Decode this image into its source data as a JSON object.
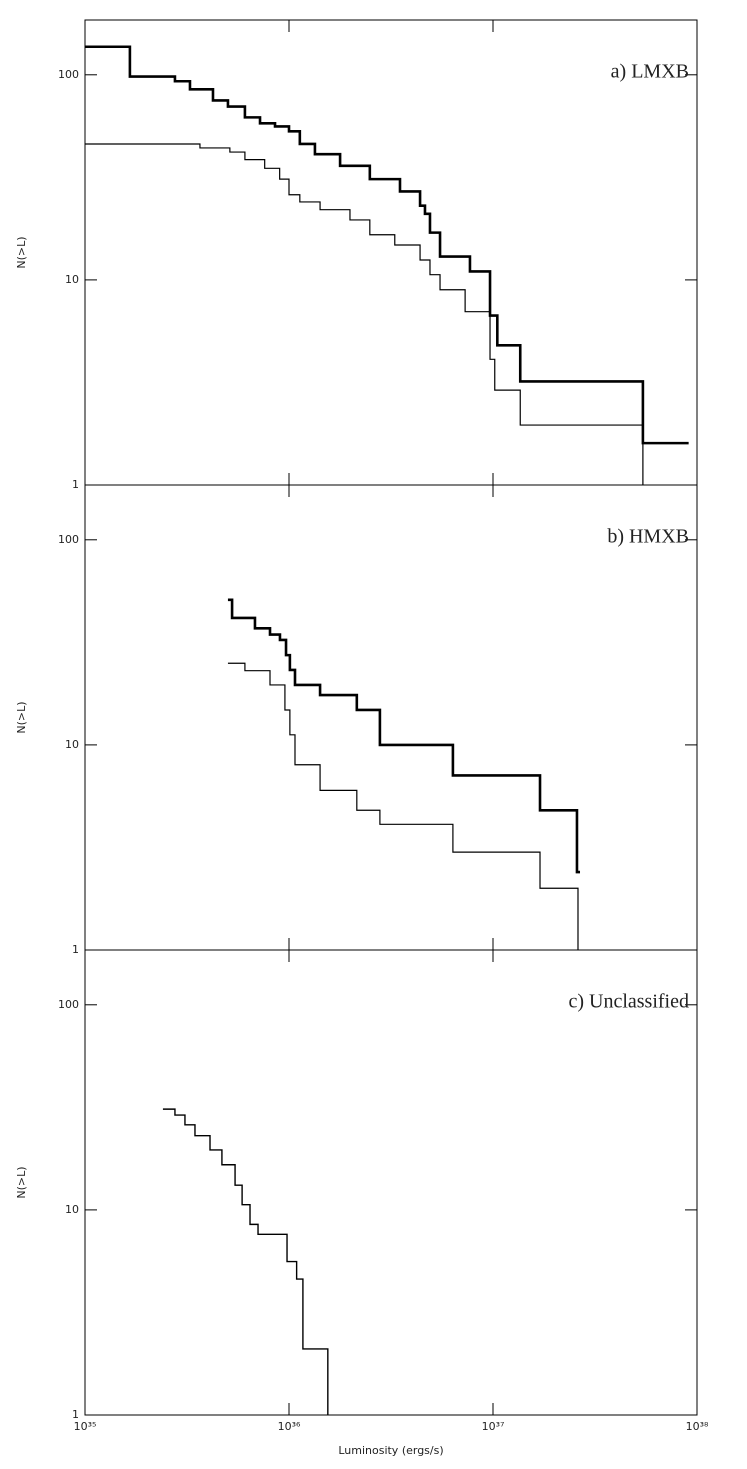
{
  "chart_data": [
    {
      "type": "step",
      "annotation": "a) LMXB",
      "ylabel": "N(>L)",
      "xlog": true,
      "ylog": true,
      "xlim": [
        1e+35,
        1e+38
      ],
      "ylim": [
        1,
        185
      ],
      "xticks": [
        1e+35,
        1e+36,
        1e+37,
        1e+38
      ],
      "yticks": [
        1,
        10,
        100
      ],
      "series": [
        {
          "color": "#000000",
          "linewidth": 2.6,
          "x": [
            1e+35,
            1.66e+35,
            2.76e+35,
            3.27e+35,
            4.24e+35,
            5.02e+35,
            6.08e+35,
            7.21e+35,
            8.54e+35,
            1e+36,
            1.13e+36,
            1.34e+36,
            1.78e+36,
            2.49e+36,
            3.5e+36,
            4.39e+36,
            4.64e+36,
            4.91e+36,
            5.5e+36,
            7.71e+36,
            9.67e+36,
            1.05e+37,
            1.36e+37,
            5.43e+37,
            9.1e+37
          ],
          "values": [
            137,
            98,
            93,
            85,
            75,
            70,
            62,
            58,
            56,
            53,
            46,
            41,
            36,
            31,
            27,
            23,
            21,
            17,
            13,
            11,
            6.7,
            4.8,
            3.2,
            1.6,
            1.6
          ]
        },
        {
          "color": "#000000",
          "linewidth": 1.2,
          "x": [
            1e+35,
            3.66e+35,
            5.13e+35,
            6.08e+35,
            7.6e+35,
            9e+35,
            1e+36,
            1.13e+36,
            1.42e+36,
            1.99e+36,
            2.49e+36,
            3.3e+36,
            4.39e+36,
            4.91e+36,
            5.5e+36,
            7.3e+36,
            9.67e+36,
            1.02e+37,
            1.36e+37,
            5.43e+37
          ],
          "values": [
            46,
            44,
            42,
            38.6,
            35,
            31,
            26,
            24,
            22,
            19.6,
            16.6,
            14.8,
            12.5,
            10.6,
            8.95,
            7,
            4.1,
            2.9,
            1.96,
            1
          ]
        }
      ]
    },
    {
      "type": "step",
      "annotation": "b) HMXB",
      "ylabel": "N(>L)",
      "xlog": true,
      "ylog": true,
      "xlim": [
        1e+35,
        1e+38
      ],
      "ylim": [
        1,
        185
      ],
      "xticks": [
        1e+35,
        1e+36,
        1e+37,
        1e+38
      ],
      "yticks": [
        1,
        10,
        100
      ],
      "series": [
        {
          "color": "#000000",
          "linewidth": 2.6,
          "x": [
            5.02e+35,
            5.26e+35,
            6.81e+35,
            8.07e+35,
            9.03e+35,
            9.67e+35,
            1.01e+36,
            1.07e+36,
            1.42e+36,
            2.15e+36,
            2.79e+36,
            6.36e+36,
            1.7e+37,
            2.58e+37,
            2.67e+37
          ],
          "values": [
            51,
            41.6,
            37,
            34.5,
            32.5,
            27.4,
            23.2,
            19.6,
            17.5,
            14.8,
            10,
            7.1,
            4.8,
            2.4,
            2.4
          ]
        },
        {
          "color": "#000000",
          "linewidth": 1.2,
          "x": [
            5.02e+35,
            6.08e+35,
            8.07e+35,
            9.55e+35,
            1.01e+36,
            1.07e+36,
            1.42e+36,
            2.15e+36,
            2.79e+36,
            6.36e+36,
            1.7e+37,
            2.61e+37
          ],
          "values": [
            25,
            23,
            19.6,
            14.8,
            11.2,
            8,
            6,
            4.8,
            4.1,
            3,
            2,
            1
          ]
        }
      ]
    },
    {
      "type": "step",
      "annotation": "c) Unclassified",
      "ylabel": "N(>L)",
      "xlabel": "Luminosity (ergs/s)",
      "xlog": true,
      "ylog": true,
      "xlim": [
        1e+35,
        1e+38
      ],
      "ylim": [
        1,
        185
      ],
      "xticks": [
        {
          "value": 1e+35,
          "label": "10³⁵"
        },
        {
          "value": 1e+36,
          "label": "10³⁶"
        },
        {
          "value": 1e+37,
          "label": "10³⁷"
        },
        {
          "value": 1e+38,
          "label": "10³⁸"
        }
      ],
      "yticks": [
        1,
        10,
        100
      ],
      "series": [
        {
          "color": "#000000",
          "linewidth": 1.4,
          "x": [
            2.41e+35,
            2.76e+35,
            3.09e+35,
            3.46e+35,
            4.1e+35,
            4.69e+35,
            5.44e+35,
            5.89e+35,
            6.44e+35,
            7.05e+35,
            9.78e+35,
            1.09e+36,
            1.17e+36,
            1.55e+36
          ],
          "values": [
            31,
            29,
            26,
            23,
            19.6,
            16.6,
            13.2,
            10.6,
            8.5,
            7.6,
            5.6,
            4.6,
            2.1,
            1
          ]
        }
      ]
    }
  ]
}
